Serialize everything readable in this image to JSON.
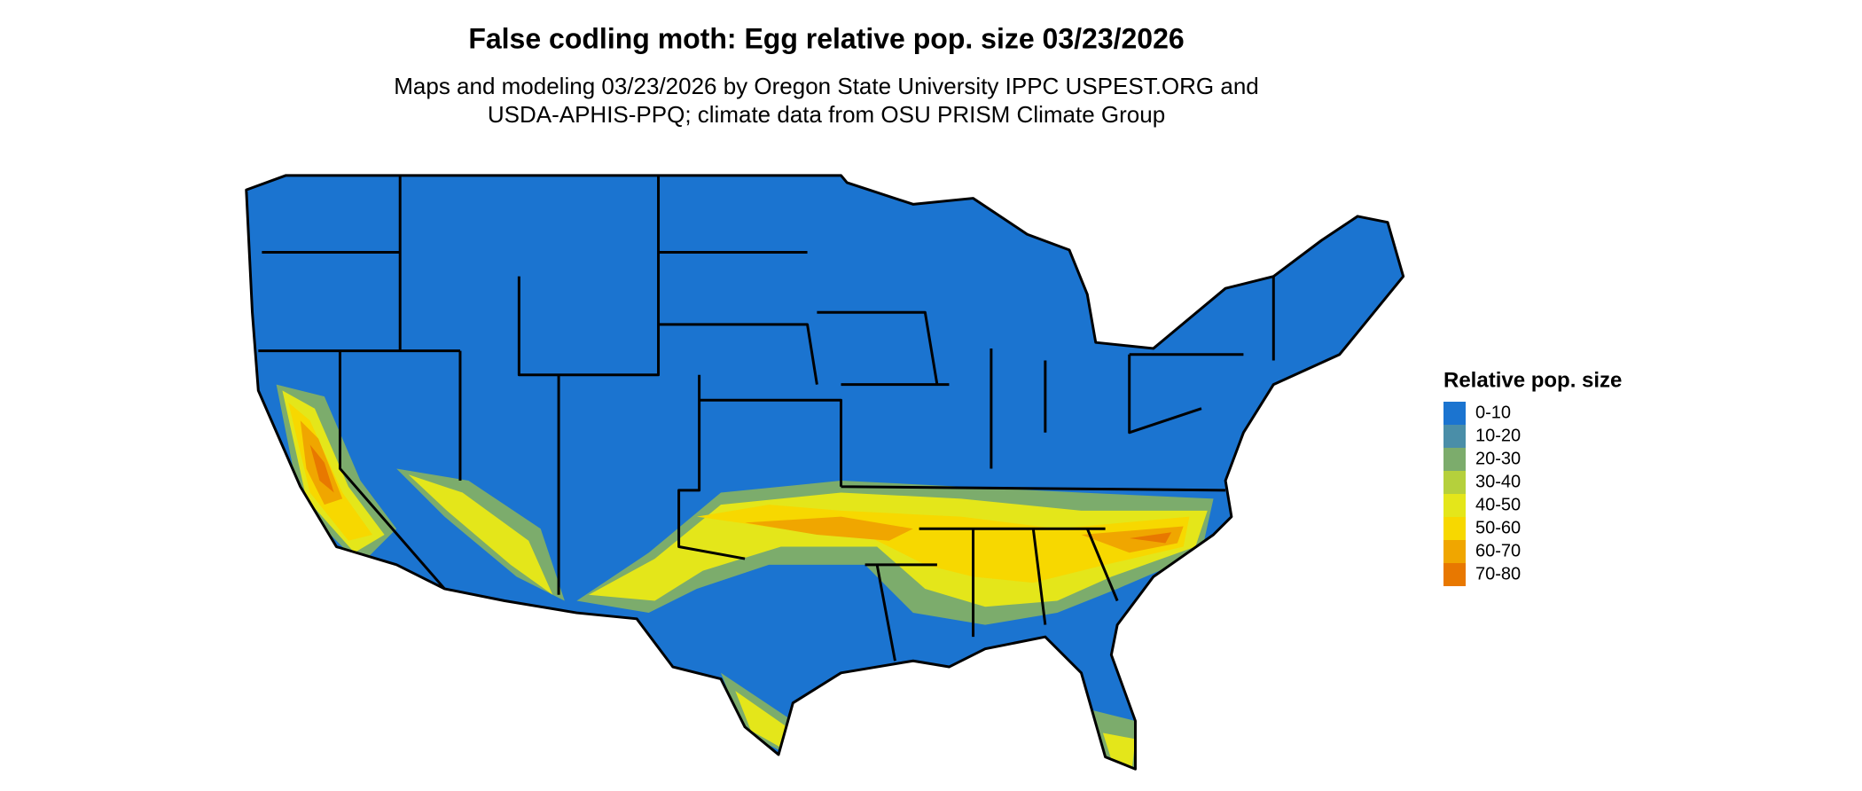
{
  "header": {
    "title": "False codling moth: Egg relative pop. size 03/23/2026",
    "subtitle": [
      "Maps and modeling 03/23/2026 by Oregon State University IPPC USPEST.ORG and",
      "USDA-APHIS-PPQ; climate data from OSU PRISM Climate Group"
    ]
  },
  "legend": {
    "title": "Relative pop. size",
    "items": [
      {
        "label": "0-10",
        "color": "#1b74d0"
      },
      {
        "label": "10-20",
        "color": "#4a8ea8"
      },
      {
        "label": "20-30",
        "color": "#7cac6c"
      },
      {
        "label": "30-40",
        "color": "#b5d03c"
      },
      {
        "label": "40-50",
        "color": "#e4e61a"
      },
      {
        "label": "50-60",
        "color": "#f7d800"
      },
      {
        "label": "60-70",
        "color": "#f0a600"
      },
      {
        "label": "70-80",
        "color": "#e87800"
      }
    ]
  }
}
